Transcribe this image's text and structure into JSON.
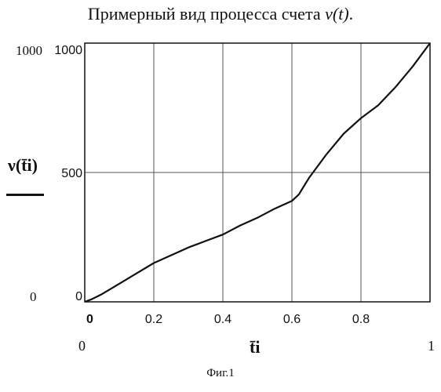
{
  "title": {
    "text": "Примерный вид процесса счета ",
    "symbol": "ν(t)",
    "suffix": "."
  },
  "chart_data": {
    "type": "line",
    "title": "Примерный вид процесса счета ν(t).",
    "xlabel": "t̄i",
    "ylabel": "ν(t̄i)",
    "xlim": [
      0,
      1
    ],
    "ylim": [
      0,
      1000
    ],
    "xticks": [
      "0",
      "0.2",
      "0.4",
      "0.6",
      "0.8"
    ],
    "yticks": [
      "0",
      "500",
      "1000"
    ],
    "x_range_labels": {
      "min": "0",
      "max": "1"
    },
    "y_range_labels": {
      "min": "0",
      "max": "1000"
    },
    "grid": true,
    "series": [
      {
        "x": [
          0,
          0.02,
          0.05,
          0.1,
          0.15,
          0.2,
          0.25,
          0.3,
          0.35,
          0.4,
          0.45,
          0.5,
          0.55,
          0.6,
          0.62,
          0.65,
          0.7,
          0.75,
          0.8,
          0.85,
          0.9,
          0.95,
          1.0
        ],
        "y": [
          0,
          10,
          30,
          70,
          110,
          150,
          180,
          210,
          235,
          260,
          295,
          325,
          360,
          390,
          415,
          480,
          570,
          650,
          710,
          760,
          830,
          910,
          1000
        ]
      }
    ]
  },
  "figure_caption": "Фиг.1",
  "colors": {
    "line": "#111111",
    "grid": "#555555",
    "frame": "#111111",
    "background": "#ffffff"
  }
}
